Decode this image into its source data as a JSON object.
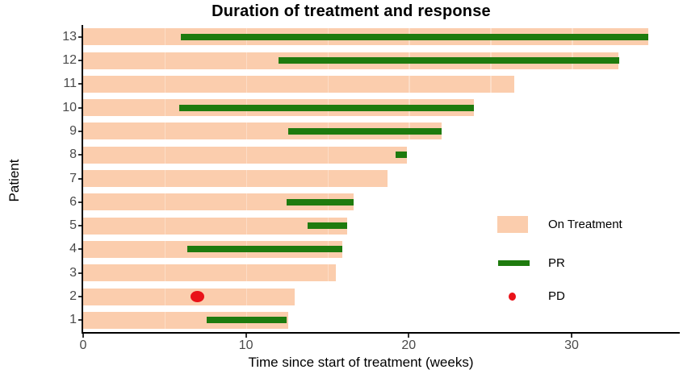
{
  "title": "Duration of treatment and response",
  "axes": {
    "xlabel": "Time since start of treatment (weeks)",
    "ylabel": "Patient"
  },
  "colors": {
    "on_treatment": "#FBCDAD",
    "pr": "#1E7B0E",
    "pd": "#E91219",
    "axis_text": "#4a4a4a",
    "axis_line": "#000000"
  },
  "legend": {
    "items": [
      {
        "label": "On Treatment",
        "marker": "bar-swatch"
      },
      {
        "label": "PR",
        "marker": "line"
      },
      {
        "label": "PD",
        "marker": "point"
      }
    ]
  },
  "chart_data": {
    "type": "bar",
    "orientation": "horizontal",
    "title": "Duration of treatment and response",
    "xlabel": "Time since start of treatment (weeks)",
    "ylabel": "Patient",
    "x_ticks": [
      0,
      10,
      20,
      30
    ],
    "xlim": [
      0,
      36.3
    ],
    "grid": "off",
    "legend_position": "right-center",
    "series_legend": [
      "On Treatment",
      "PR",
      "PD"
    ],
    "patients": [
      {
        "id": 1,
        "on_treatment_end": 12.6,
        "pr": [
          7.6,
          12.5
        ],
        "pd": null
      },
      {
        "id": 2,
        "on_treatment_end": 13.0,
        "pr": null,
        "pd": 7.0
      },
      {
        "id": 3,
        "on_treatment_end": 15.5,
        "pr": null,
        "pd": null
      },
      {
        "id": 4,
        "on_treatment_end": 15.9,
        "pr": [
          6.4,
          15.9
        ],
        "pd": null
      },
      {
        "id": 5,
        "on_treatment_end": 16.2,
        "pr": [
          13.8,
          16.2
        ],
        "pd": null
      },
      {
        "id": 6,
        "on_treatment_end": 16.6,
        "pr": [
          12.5,
          16.6
        ],
        "pd": null
      },
      {
        "id": 7,
        "on_treatment_end": 18.7,
        "pr": null,
        "pd": null
      },
      {
        "id": 8,
        "on_treatment_end": 19.9,
        "pr": [
          19.2,
          19.9
        ],
        "pd": null
      },
      {
        "id": 9,
        "on_treatment_end": 22.0,
        "pr": [
          12.6,
          22.0
        ],
        "pd": null
      },
      {
        "id": 10,
        "on_treatment_end": 24.0,
        "pr": [
          5.9,
          24.0
        ],
        "pd": null
      },
      {
        "id": 11,
        "on_treatment_end": 26.5,
        "pr": null,
        "pd": null
      },
      {
        "id": 12,
        "on_treatment_end": 32.9,
        "pr": [
          12.0,
          32.9
        ],
        "pd": null
      },
      {
        "id": 13,
        "on_treatment_end": 34.7,
        "pr": [
          6.0,
          34.7
        ],
        "pd": null
      }
    ]
  }
}
